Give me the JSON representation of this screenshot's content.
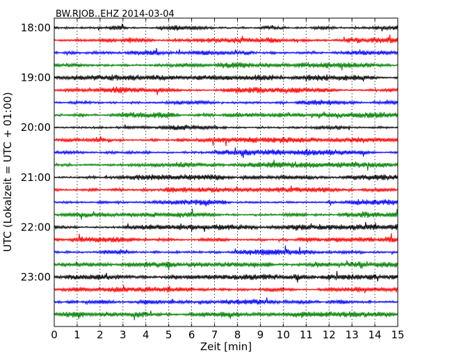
{
  "chart_data": {
    "type": "line",
    "title": "BW.RJOB..EHZ 2014-03-04",
    "xlabel": "Zeit  [min]",
    "ylabel": "UTC (Lokalzeit = UTC + 01:00)",
    "xlim": [
      0,
      15
    ],
    "x_ticks": [
      "0",
      "1",
      "2",
      "3",
      "4",
      "5",
      "6",
      "7",
      "8",
      "9",
      "10",
      "11",
      "12",
      "13",
      "14",
      "15"
    ],
    "y_tick_labels": [
      "18:00",
      "19:00",
      "20:00",
      "21:00",
      "22:00",
      "23:00"
    ],
    "trace_interval_min": 15,
    "start_time": "18:00",
    "end_time": "24:00",
    "trace_colors": [
      "#000000",
      "#ff0000",
      "#0000ff",
      "#008000"
    ],
    "grid": "vertical dotted",
    "series": [
      {
        "start": "18:00"
      },
      {
        "start": "18:15"
      },
      {
        "start": "18:30"
      },
      {
        "start": "18:45"
      },
      {
        "start": "19:00"
      },
      {
        "start": "19:15"
      },
      {
        "start": "19:30"
      },
      {
        "start": "19:45"
      },
      {
        "start": "20:00"
      },
      {
        "start": "20:15"
      },
      {
        "start": "20:30"
      },
      {
        "start": "20:45"
      },
      {
        "start": "21:00"
      },
      {
        "start": "21:15"
      },
      {
        "start": "21:30"
      },
      {
        "start": "21:45"
      },
      {
        "start": "22:00"
      },
      {
        "start": "22:15"
      },
      {
        "start": "22:30"
      },
      {
        "start": "22:45"
      },
      {
        "start": "23:00"
      },
      {
        "start": "23:15"
      },
      {
        "start": "23:30"
      },
      {
        "start": "23:45"
      }
    ]
  }
}
